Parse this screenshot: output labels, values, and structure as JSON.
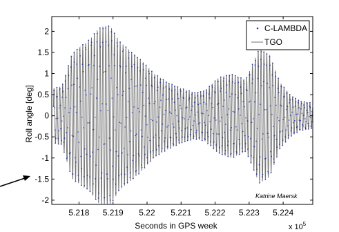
{
  "chart_data": {
    "type": "line",
    "xlabel": "Seconds in GPS week",
    "ylabel": "Roll angle   [deg]",
    "x_exponent_label": "x 10",
    "x_exponent_power": "5",
    "annotation": "Katrine Maersk",
    "xlim": [
      5.2172,
      5.22487
    ],
    "ylim": [
      -2.1,
      2.35
    ],
    "x_ticks": [
      5.218,
      5.219,
      5.22,
      5.221,
      5.222,
      5.223,
      5.224
    ],
    "x_tick_labels": [
      "5.218",
      "5.219",
      "5.22",
      "5.221",
      "5.222",
      "5.223",
      "5.224"
    ],
    "y_ticks": [
      2,
      1.5,
      1,
      0.5,
      0,
      -0.5,
      -1,
      -1.5,
      -2
    ],
    "y_tick_labels": [
      "2",
      "1.5",
      "1",
      "0.5",
      "0",
      "-0.5",
      "-1",
      "-1.5",
      "-2"
    ],
    "legend_position": "top-right",
    "grid": false,
    "signal": {
      "x_start": 5.21725,
      "x_end": 5.22487,
      "period": 8.45e-05,
      "phase": 0.35,
      "envelope": [
        [
          5.21725,
          0.65
        ],
        [
          5.2175,
          0.7
        ],
        [
          5.2178,
          1.5
        ],
        [
          5.2183,
          1.8
        ],
        [
          5.2186,
          2.1
        ],
        [
          5.2189,
          2.15
        ],
        [
          5.2192,
          1.75
        ],
        [
          5.2195,
          1.55
        ],
        [
          5.2198,
          1.35
        ],
        [
          5.2202,
          1.0
        ],
        [
          5.2206,
          0.8
        ],
        [
          5.221,
          0.65
        ],
        [
          5.2214,
          0.55
        ],
        [
          5.2217,
          0.6
        ],
        [
          5.2221,
          0.9
        ],
        [
          5.2225,
          1.0
        ],
        [
          5.2229,
          0.85
        ],
        [
          5.2233,
          1.6
        ],
        [
          5.2236,
          1.45
        ],
        [
          5.2239,
          0.8
        ],
        [
          5.2242,
          0.5
        ],
        [
          5.2245,
          0.35
        ],
        [
          5.22487,
          0.3
        ]
      ]
    },
    "series": [
      {
        "name": "C-LAMBDA",
        "style": "dots",
        "color": "#2f3e9e",
        "sample_step": 1.12e-05
      },
      {
        "name": "TGO",
        "style": "line",
        "color": "#707070"
      }
    ]
  }
}
